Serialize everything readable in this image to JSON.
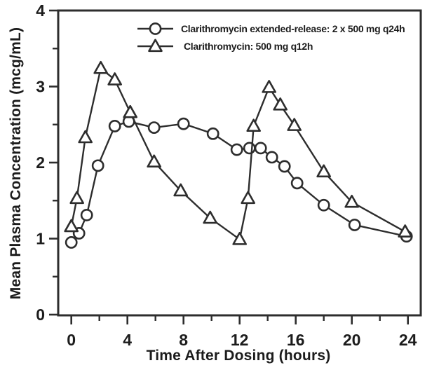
{
  "figure": {
    "background_color": "#ffffff",
    "line_color": "#2d2d2d",
    "text_color": "#1c1c1c"
  },
  "chart_data": {
    "type": "line",
    "title": "",
    "xlabel": "Time After Dosing (hours)",
    "ylabel": "Mean Plasma Concentration (mcg/mL)",
    "xlim": [
      0,
      24
    ],
    "ylim": [
      0,
      4
    ],
    "x_major_ticks": [
      0,
      4,
      8,
      12,
      16,
      20,
      24
    ],
    "x_minor_ticks": [
      2,
      6,
      10,
      14,
      18,
      22
    ],
    "y_major_ticks": [
      0,
      1,
      2,
      3,
      4
    ],
    "y_minor_ticks": [
      0.5,
      1.5,
      2.5,
      3.5
    ],
    "grid": false,
    "legend_position": "top-inside",
    "series": [
      {
        "name": "Clarithromycin extended-release: 2 x 500 mg q24h",
        "marker": "circle",
        "x": [
          0,
          0.55,
          1.1,
          1.9,
          3.1,
          4.1,
          5.9,
          8,
          10.1,
          11.8,
          12.7,
          13.5,
          14.3,
          15.2,
          16.1,
          18,
          20.2,
          23.9
        ],
        "y": [
          0.95,
          1.07,
          1.31,
          1.96,
          2.48,
          2.54,
          2.46,
          2.51,
          2.38,
          2.17,
          2.19,
          2.19,
          2.07,
          1.95,
          1.73,
          1.44,
          1.18,
          1.03
        ]
      },
      {
        "name": "Clarithromycin: 500 mg q12h",
        "marker": "triangle",
        "x": [
          0,
          0.4,
          1,
          2.1,
          3.1,
          4.2,
          5.9,
          7.8,
          9.9,
          12,
          12.6,
          13,
          14.1,
          14.9,
          15.9,
          18,
          20,
          23.8
        ],
        "y": [
          1.16,
          1.53,
          2.33,
          3.24,
          3.09,
          2.66,
          2.01,
          1.63,
          1.27,
          0.99,
          1.53,
          2.48,
          2.99,
          2.76,
          2.49,
          1.88,
          1.48,
          1.09
        ]
      }
    ]
  }
}
